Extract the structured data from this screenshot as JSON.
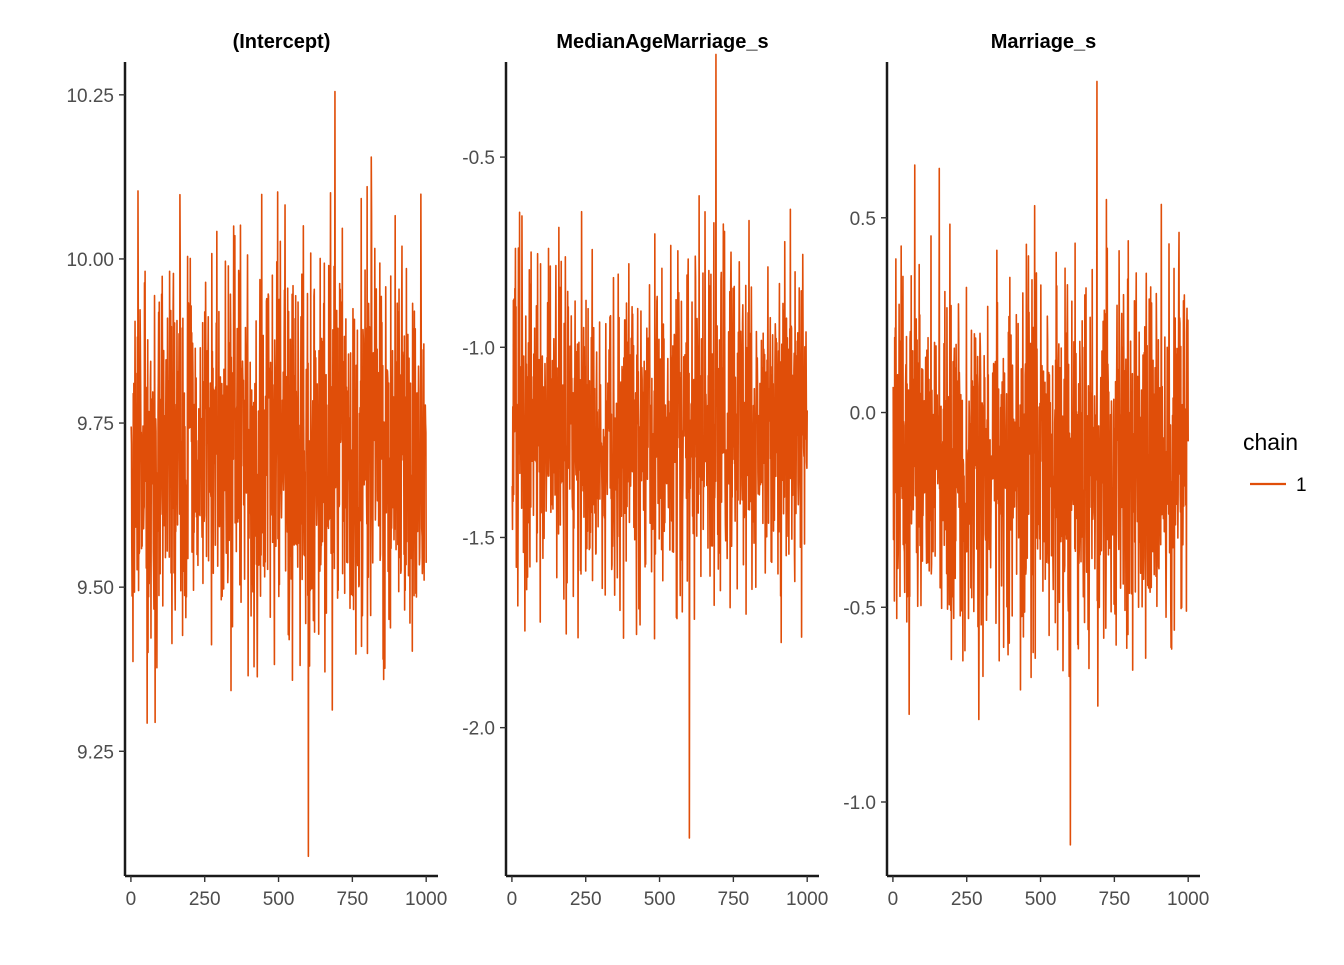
{
  "chart_data": {
    "type": "line",
    "title": "",
    "xlabel": "",
    "ylabel": "",
    "color": "#E04E09",
    "legend": {
      "title": "chain",
      "placement": "right",
      "entries": [
        {
          "label": "1",
          "color": "#E04E09"
        }
      ]
    },
    "grid": false,
    "panels": [
      {
        "title": "(Intercept)",
        "xlim": [
          -20,
          1040
        ],
        "ylim": [
          9.06,
          10.3
        ],
        "xticks": [
          0,
          250,
          500,
          750,
          1000
        ],
        "xtick_labels": [
          "0",
          "250",
          "500",
          "750",
          "1000"
        ],
        "yticks": [
          9.25,
          9.5,
          9.75,
          10.0,
          10.25
        ],
        "ytick_labels": [
          "9.25",
          "9.50",
          "9.75",
          "10.00",
          "10.25"
        ],
        "trace": {
          "n": 1000,
          "center": 9.71,
          "sd": 0.16,
          "min": 9.09,
          "max": 10.255,
          "seed": 101
        }
      },
      {
        "title": "MedianAgeMarriage_s",
        "xlim": [
          -20,
          1040
        ],
        "ylim": [
          -2.39,
          -0.25
        ],
        "xticks": [
          0,
          250,
          500,
          750,
          1000
        ],
        "xtick_labels": [
          "0",
          "250",
          "500",
          "750",
          "1000"
        ],
        "yticks": [
          -2.0,
          -1.5,
          -1.0,
          -0.5
        ],
        "ytick_labels": [
          "-2.0",
          "-1.5",
          "-1.0",
          "-0.5"
        ],
        "trace": {
          "n": 1000,
          "center": -1.2,
          "sd": 0.23,
          "min": -2.29,
          "max": -0.23,
          "seed": 202
        }
      },
      {
        "title": "Marriage_s",
        "xlim": [
          -20,
          1040
        ],
        "ylim": [
          -1.19,
          0.9
        ],
        "xticks": [
          0,
          250,
          500,
          750,
          1000
        ],
        "xtick_labels": [
          "0",
          "250",
          "500",
          "750",
          "1000"
        ],
        "yticks": [
          -1.0,
          -0.5,
          0.0,
          0.5
        ],
        "ytick_labels": [
          "-1.0",
          "-0.5",
          "0.0",
          "0.5"
        ],
        "trace": {
          "n": 1000,
          "center": -0.13,
          "sd": 0.24,
          "min": -1.11,
          "max": 0.85,
          "seed": 303
        }
      }
    ]
  }
}
